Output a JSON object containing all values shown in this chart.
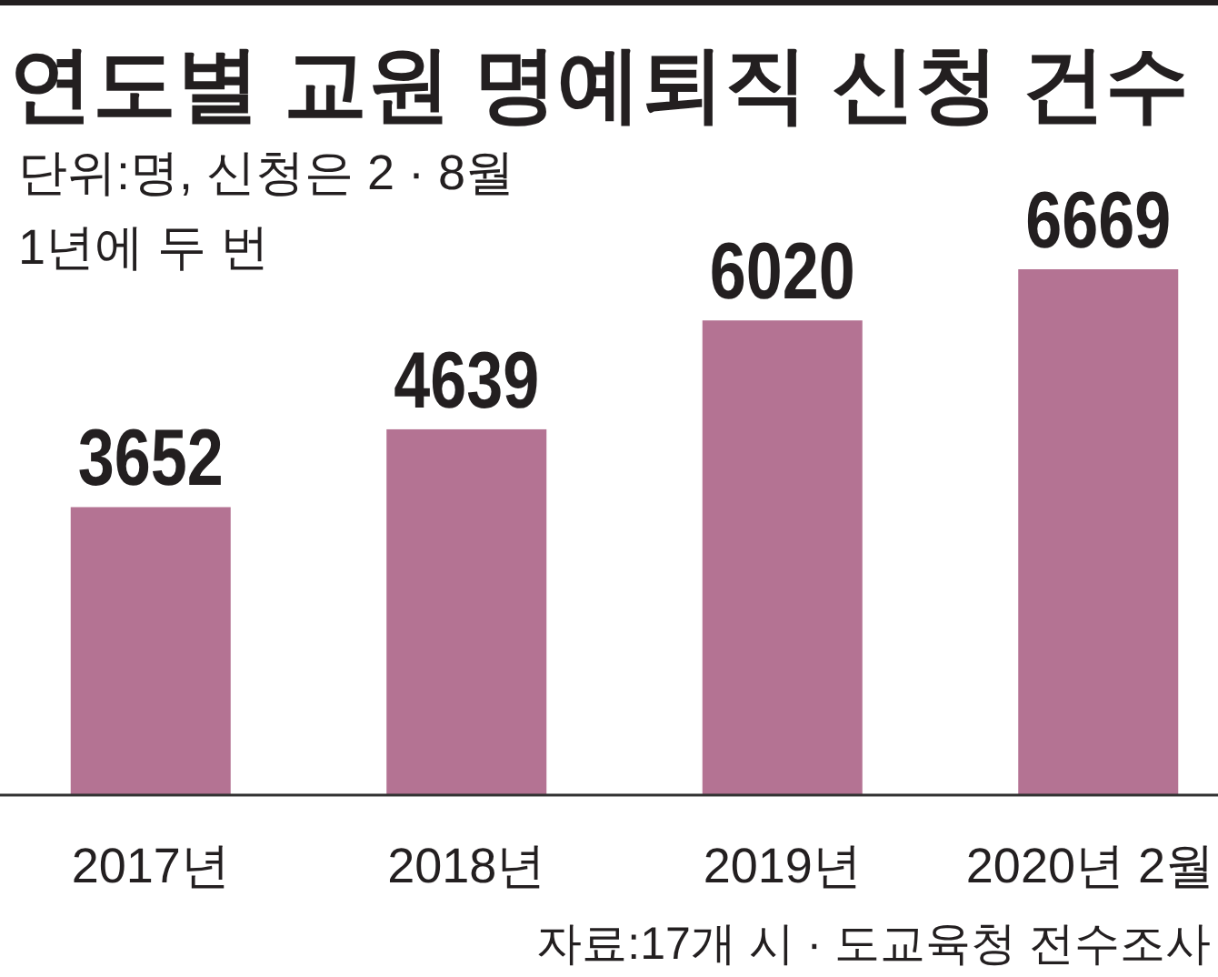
{
  "chart_data": {
    "type": "bar",
    "title": "연도별 교원 명예퇴직 신청 건수",
    "subtitle": "단위:명, 신청은 2 · 8월\n1년에 두 번",
    "categories": [
      "2017년",
      "2018년",
      "2019년",
      "2020년 2월"
    ],
    "values": [
      3652,
      4639,
      6020,
      6669
    ],
    "color": "#b47393",
    "data_labels": true,
    "annotations": [
      "자료:17개 시 · 도교육청 전수조사"
    ]
  }
}
